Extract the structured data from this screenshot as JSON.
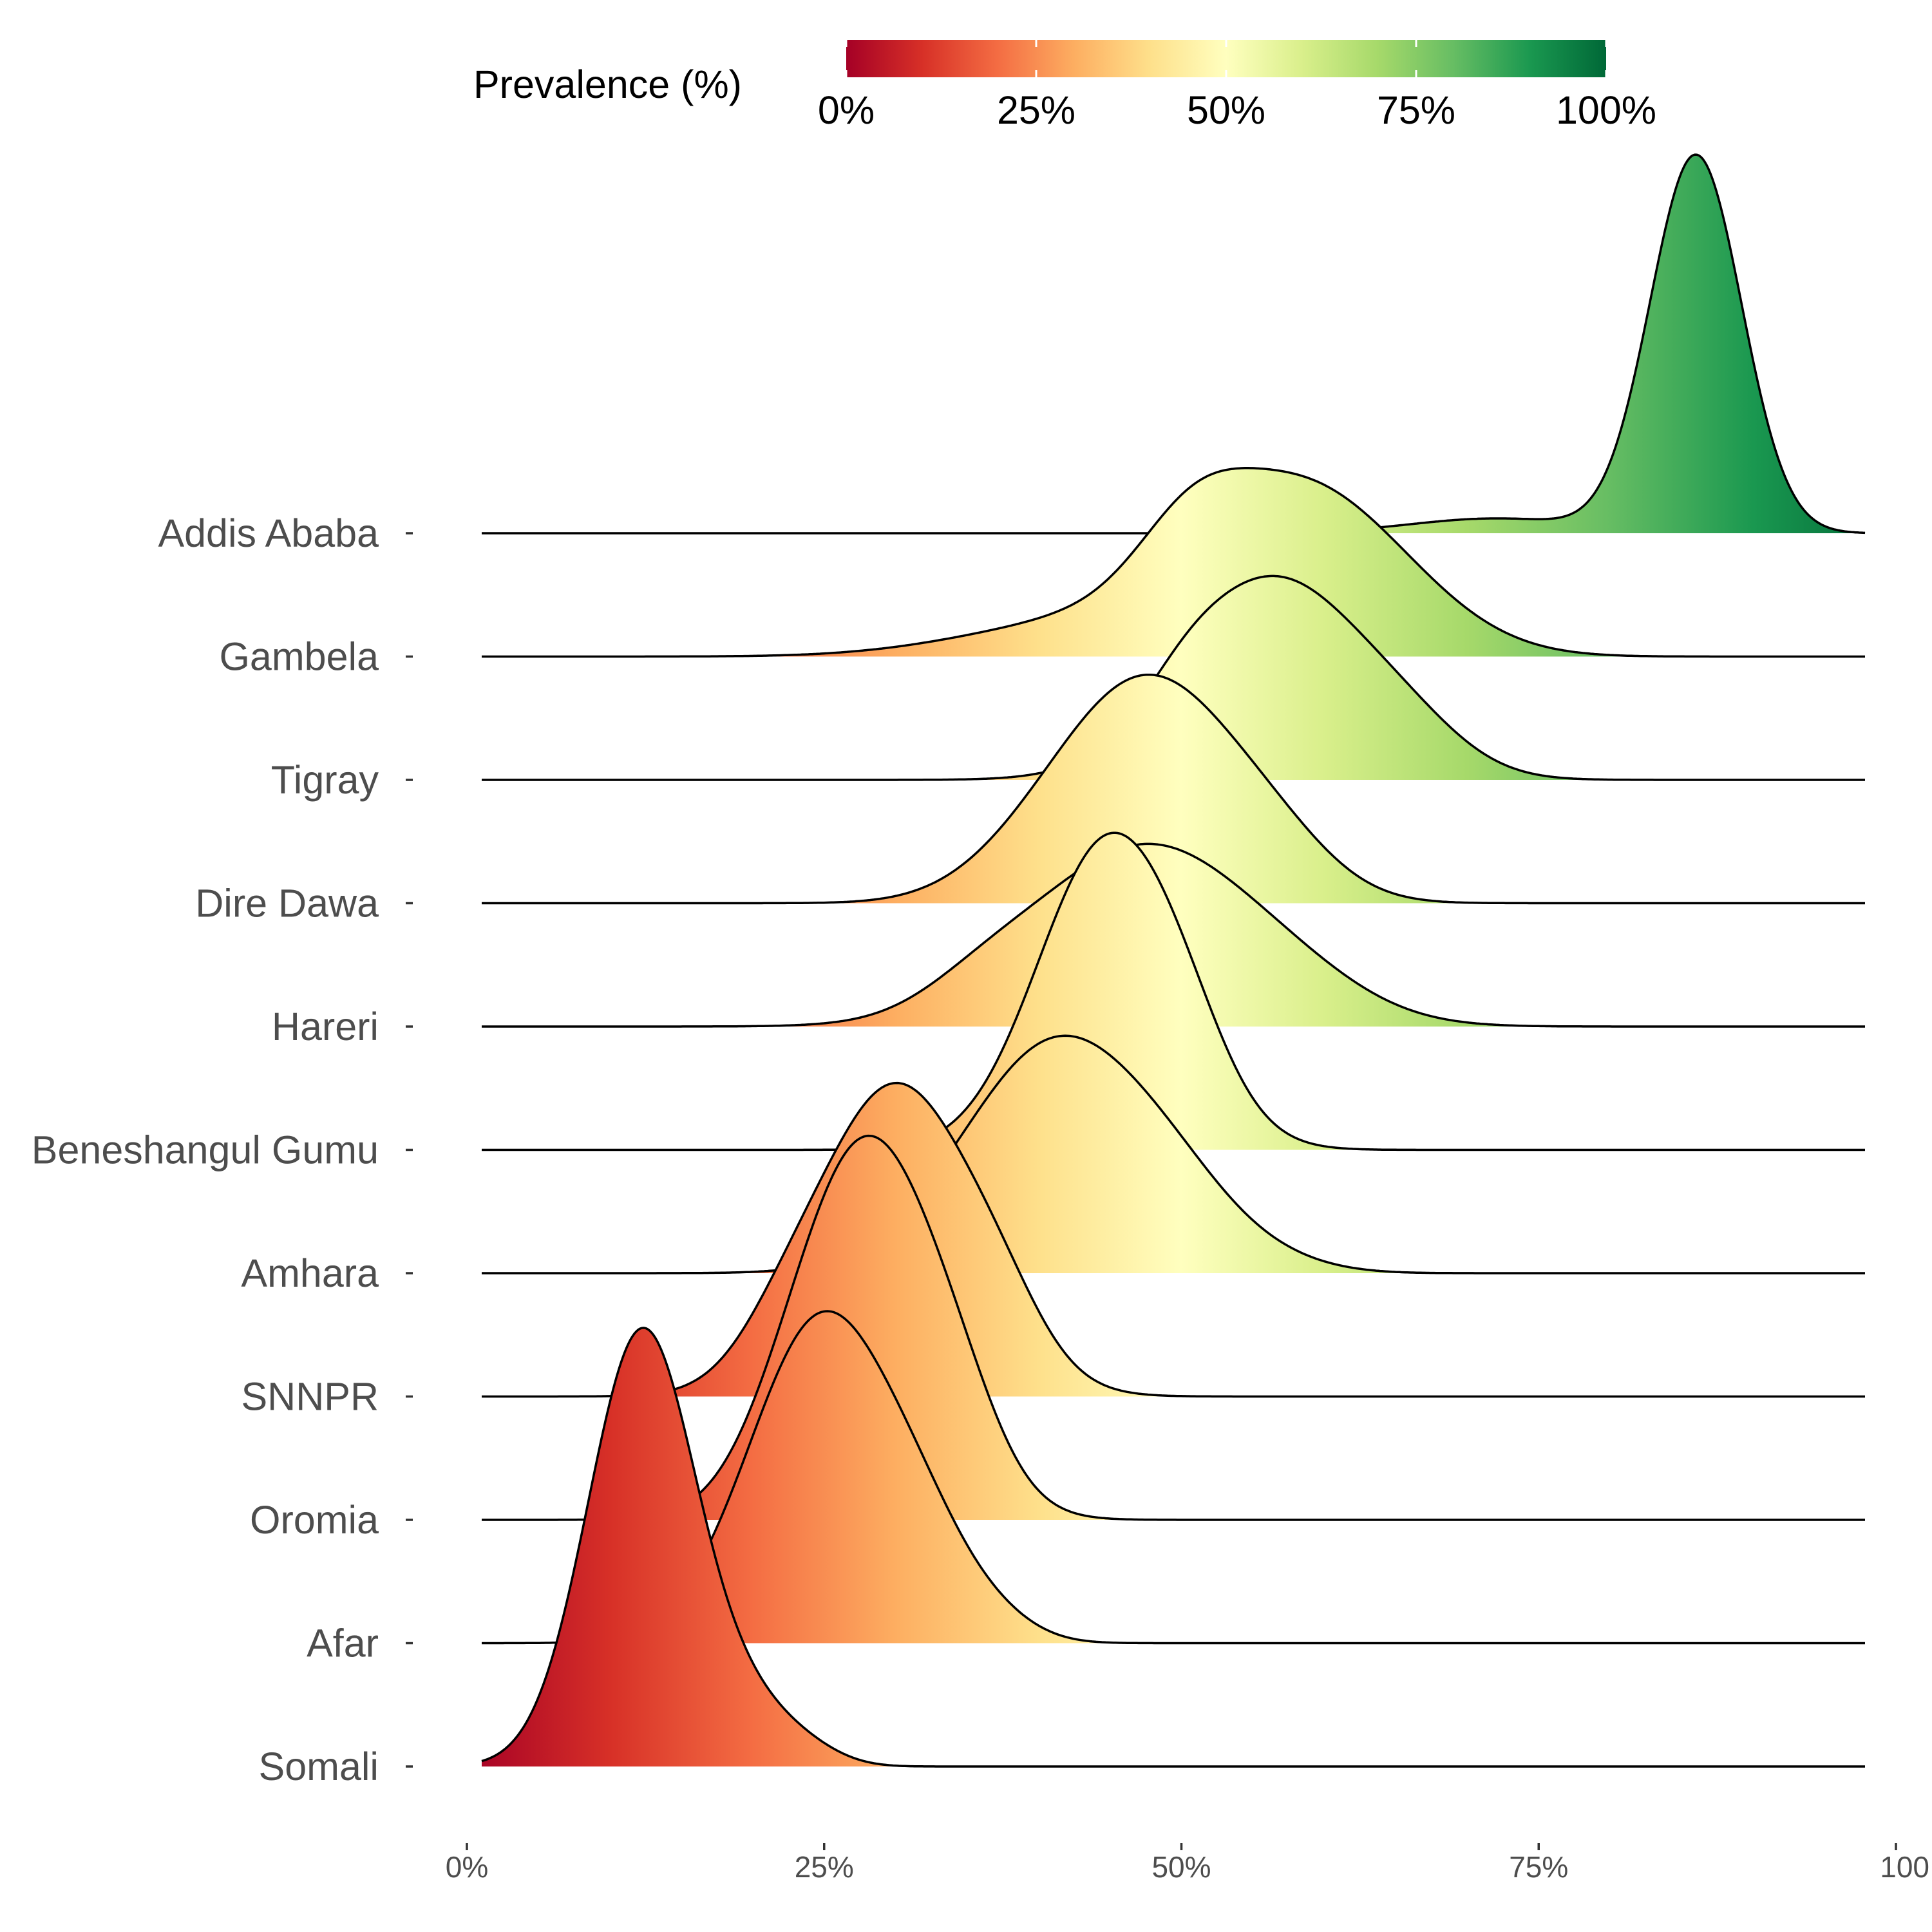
{
  "chart_data": {
    "type": "ridgeline",
    "title": "",
    "xlabel": "",
    "ylabel": "",
    "xlim": [
      0,
      100
    ],
    "x_tick_labels": [
      "0%",
      "25%",
      "50%",
      "75%",
      "100"
    ],
    "x_tick_values": [
      0,
      25,
      50,
      75,
      100
    ],
    "legend": {
      "title": "Prevalence (%)",
      "labels": [
        "0%",
        "25%",
        "50%",
        "75%",
        "100%"
      ],
      "values": [
        0,
        25,
        50,
        75,
        100
      ],
      "placement": "top",
      "colors": [
        "#a50026",
        "#d73027",
        "#f46d43",
        "#fdae61",
        "#fee08b",
        "#ffffbf",
        "#d9ef8b",
        "#a6d96a",
        "#66bd63",
        "#1a9850",
        "#006837"
      ]
    },
    "series": [
      {
        "name": "Addis Ababa",
        "components": [
          {
            "mu": 86.0,
            "sd": 3.2,
            "h": 2.55
          },
          {
            "mu": 72.0,
            "sd": 6.0,
            "h": 0.1
          }
        ]
      },
      {
        "name": "Gambela",
        "components": [
          {
            "mu": 56.5,
            "sd": 7.0,
            "h": 1.0
          },
          {
            "mu": 50.5,
            "sd": 3.5,
            "h": 0.3
          },
          {
            "mu": 42.0,
            "sd": 8.0,
            "h": 0.2
          },
          {
            "mu": 63.5,
            "sd": 6.0,
            "h": 0.3
          }
        ]
      },
      {
        "name": "Tigray",
        "components": [
          {
            "mu": 56.5,
            "sd": 6.3,
            "h": 1.35
          },
          {
            "mu": 66.0,
            "sd": 4.0,
            "h": 0.2
          },
          {
            "mu": 50.0,
            "sd": 3.0,
            "h": 0.15
          }
        ]
      },
      {
        "name": "Dire Dawa",
        "components": [
          {
            "mu": 48.0,
            "sd": 6.2,
            "h": 1.47
          },
          {
            "mu": 40.0,
            "sd": 5.0,
            "h": 0.2
          },
          {
            "mu": 57.0,
            "sd": 4.0,
            "h": 0.2
          }
        ]
      },
      {
        "name": "Hareri",
        "components": [
          {
            "mu": 47.5,
            "sd": 7.8,
            "h": 1.22
          },
          {
            "mu": 58.5,
            "sd": 5.0,
            "h": 0.12
          },
          {
            "mu": 36.0,
            "sd": 4.0,
            "h": 0.14
          }
        ]
      },
      {
        "name": "Beneshangul Gumu",
        "components": [
          {
            "mu": 45.0,
            "sd": 5.0,
            "h": 2.1
          },
          {
            "mu": 50.5,
            "sd": 3.0,
            "h": 0.2
          }
        ]
      },
      {
        "name": "Amhara",
        "components": [
          {
            "mu": 41.5,
            "sd": 6.7,
            "h": 1.58
          },
          {
            "mu": 50.0,
            "sd": 4.0,
            "h": 0.2
          },
          {
            "mu": 56.0,
            "sd": 4.0,
            "h": 0.06
          }
        ]
      },
      {
        "name": "SNNPR",
        "components": [
          {
            "mu": 30.0,
            "sd": 5.5,
            "h": 2.1
          },
          {
            "mu": 37.5,
            "sd": 3.0,
            "h": 0.25
          },
          {
            "mu": 22.0,
            "sd": 3.0,
            "h": 0.2
          }
        ]
      },
      {
        "name": "Oromia",
        "components": [
          {
            "mu": 28.0,
            "sd": 5.0,
            "h": 2.55
          },
          {
            "mu": 34.5,
            "sd": 3.0,
            "h": 0.3
          },
          {
            "mu": 22.0,
            "sd": 3.0,
            "h": 0.1
          }
        ]
      },
      {
        "name": "Afar",
        "components": [
          {
            "mu": 25.0,
            "sd": 5.2,
            "h": 2.22
          },
          {
            "mu": 32.0,
            "sd": 3.0,
            "h": 0.3
          },
          {
            "mu": 36.5,
            "sd": 3.0,
            "h": 0.15
          }
        ]
      },
      {
        "name": "Somali",
        "components": [
          {
            "mu": 12.3,
            "sd": 3.8,
            "h": 2.95
          },
          {
            "mu": 20.0,
            "sd": 3.0,
            "h": 0.3
          },
          {
            "mu": 24.0,
            "sd": 2.5,
            "h": 0.08
          }
        ]
      }
    ]
  }
}
